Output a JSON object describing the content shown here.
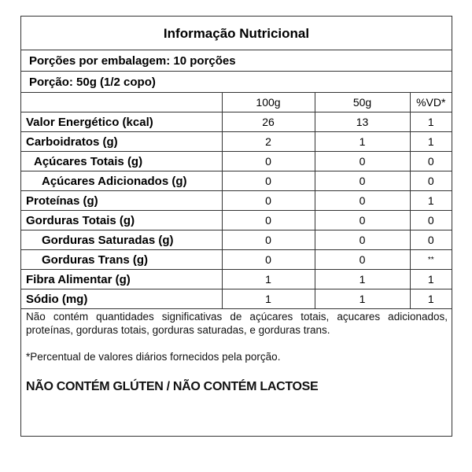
{
  "title": "Informação  Nutricional",
  "servings_per_package": "Porções por embalagem: 10 porções",
  "serving_size": "Porção: 50g (1/2 copo)",
  "columns": [
    "",
    "100g",
    "50g",
    "%VD*"
  ],
  "rows": [
    {
      "name": "Valor Energético (kcal)",
      "indent": 0,
      "v100": "26",
      "v50": "13",
      "vd": "1"
    },
    {
      "name": "Carboidratos (g)",
      "indent": 0,
      "v100": "2",
      "v50": "1",
      "vd": "1"
    },
    {
      "name": "Açúcares Totais (g)",
      "indent": 1,
      "v100": "0",
      "v50": "0",
      "vd": "0"
    },
    {
      "name": "Açúcares Adicionados (g)",
      "indent": 2,
      "v100": "0",
      "v50": "0",
      "vd": "0"
    },
    {
      "name": "Proteínas (g)",
      "indent": 0,
      "v100": "0",
      "v50": "0",
      "vd": "1"
    },
    {
      "name": "Gorduras Totais (g)",
      "indent": 0,
      "v100": "0",
      "v50": "0",
      "vd": "0"
    },
    {
      "name": "Gorduras Saturadas (g)",
      "indent": 2,
      "v100": "0",
      "v50": "0",
      "vd": "0"
    },
    {
      "name": "Gorduras Trans (g)",
      "indent": 2,
      "v100": "0",
      "v50": "0",
      "vd": "**"
    },
    {
      "name": "Fibra Alimentar (g)",
      "indent": 0,
      "v100": "1",
      "v50": "1",
      "vd": "1"
    },
    {
      "name": "Sódio (mg)",
      "indent": 0,
      "v100": "1",
      "v50": "1",
      "vd": "1"
    }
  ],
  "footnote": "Não contém quantidades significativas de açúcares totais, açucares adicionados, proteínas, gorduras totais, gorduras saturadas, e gorduras trans.",
  "vd_note": "*Percentual  de valores diários fornecidos pela porção.",
  "claim": "NÃO CONTÉM GLÚTEN / NÃO CONTÉM LACTOSE"
}
